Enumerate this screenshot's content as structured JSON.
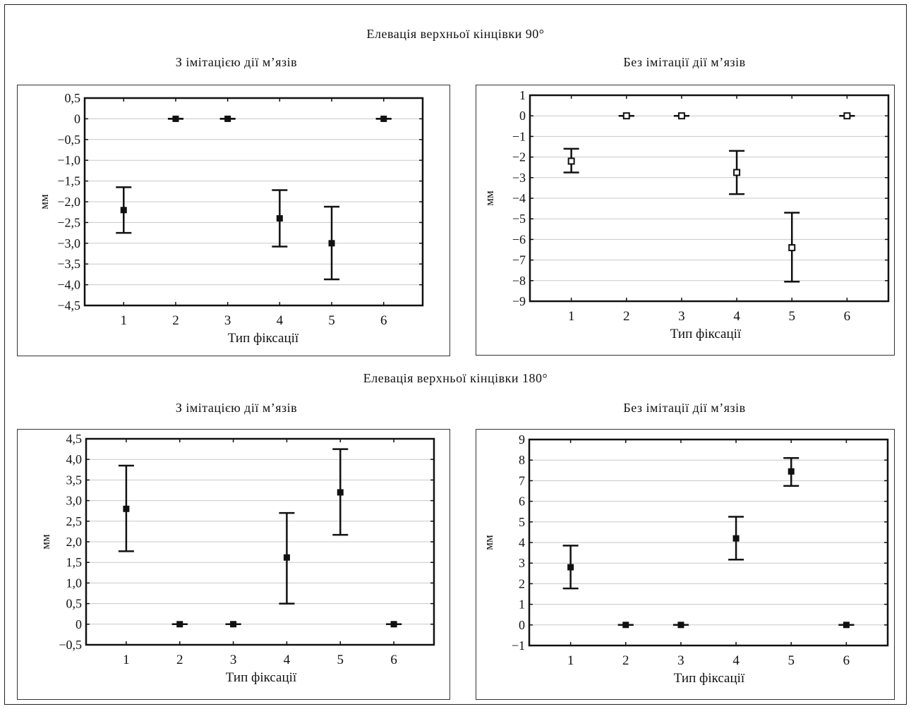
{
  "sections": [
    {
      "title": "Елевація верхньої кінцівки 90°"
    },
    {
      "title": "Елевація верхньої кінцівки 180°"
    }
  ],
  "chart_data": [
    {
      "type": "scatter",
      "title": "З імітацією дії м’язів",
      "xlabel": "Тип фіксації",
      "ylabel": "мм",
      "categories": [
        "1",
        "2",
        "3",
        "4",
        "5",
        "6"
      ],
      "yticks": [
        "0,5",
        "0",
        "−0,5",
        "−1,0",
        "−1,5",
        "−2,0",
        "−2,5",
        "−3,0",
        "−3,5",
        "−4,0",
        "−4,5"
      ],
      "ylim": [
        -4.5,
        0.5
      ],
      "grid": true,
      "marker": "filled",
      "points": [
        {
          "x": "1",
          "y": -2.2,
          "low": -2.75,
          "high": -1.65
        },
        {
          "x": "2",
          "y": 0,
          "low": 0,
          "high": 0
        },
        {
          "x": "3",
          "y": 0,
          "low": 0,
          "high": 0
        },
        {
          "x": "4",
          "y": -2.4,
          "low": -3.08,
          "high": -1.72
        },
        {
          "x": "5",
          "y": -3.0,
          "low": -3.87,
          "high": -2.12
        },
        {
          "x": "6",
          "y": 0,
          "low": 0,
          "high": 0
        }
      ]
    },
    {
      "type": "scatter",
      "title": "Без імітації дії м’язів",
      "xlabel": "Тип фіксації",
      "ylabel": "мм",
      "categories": [
        "1",
        "2",
        "3",
        "4",
        "5",
        "6"
      ],
      "yticks": [
        "1",
        "0",
        "−1",
        "−2",
        "−3",
        "−4",
        "−5",
        "−6",
        "−7",
        "−8",
        "−9"
      ],
      "ylim": [
        -9,
        1
      ],
      "grid": true,
      "marker": "hollow",
      "points": [
        {
          "x": "1",
          "y": -2.2,
          "low": -2.75,
          "high": -1.6
        },
        {
          "x": "2",
          "y": 0,
          "low": 0,
          "high": 0
        },
        {
          "x": "3",
          "y": 0,
          "low": 0,
          "high": 0
        },
        {
          "x": "4",
          "y": -2.75,
          "low": -3.8,
          "high": -1.7
        },
        {
          "x": "5",
          "y": -6.4,
          "low": -8.05,
          "high": -4.7
        },
        {
          "x": "6",
          "y": 0,
          "low": 0,
          "high": 0
        }
      ]
    },
    {
      "type": "scatter",
      "title": "З імітацією дії м’язів",
      "xlabel": "Тип фіксації",
      "ylabel": "мм",
      "categories": [
        "1",
        "2",
        "3",
        "4",
        "5",
        "6"
      ],
      "yticks": [
        "4,5",
        "4,0",
        "3,5",
        "3,0",
        "2,5",
        "2,0",
        "1,5",
        "1,0",
        "0,5",
        "0",
        "−0,5"
      ],
      "ylim": [
        -0.5,
        4.5
      ],
      "grid": true,
      "marker": "filled",
      "points": [
        {
          "x": "1",
          "y": 2.8,
          "low": 1.77,
          "high": 3.85
        },
        {
          "x": "2",
          "y": 0,
          "low": 0,
          "high": 0
        },
        {
          "x": "3",
          "y": 0,
          "low": 0,
          "high": 0
        },
        {
          "x": "4",
          "y": 1.62,
          "low": 0.5,
          "high": 2.7
        },
        {
          "x": "5",
          "y": 3.2,
          "low": 2.17,
          "high": 4.25
        },
        {
          "x": "6",
          "y": 0,
          "low": 0,
          "high": 0
        }
      ]
    },
    {
      "type": "scatter",
      "title": "Без імітації дії м’язів",
      "xlabel": "Тип фіксації",
      "ylabel": "мм",
      "categories": [
        "1",
        "2",
        "3",
        "4",
        "5",
        "6"
      ],
      "yticks": [
        "9",
        "8",
        "7",
        "6",
        "5",
        "4",
        "3",
        "2",
        "1",
        "0",
        "−1"
      ],
      "ylim": [
        -1,
        9
      ],
      "grid": true,
      "marker": "filled",
      "points": [
        {
          "x": "1",
          "y": 2.8,
          "low": 1.77,
          "high": 3.85
        },
        {
          "x": "2",
          "y": 0,
          "low": 0,
          "high": 0
        },
        {
          "x": "3",
          "y": 0,
          "low": 0,
          "high": 0
        },
        {
          "x": "4",
          "y": 4.2,
          "low": 3.17,
          "high": 5.25
        },
        {
          "x": "5",
          "y": 7.45,
          "low": 6.75,
          "high": 8.1
        },
        {
          "x": "6",
          "y": 0,
          "low": 0,
          "high": 0
        }
      ]
    }
  ]
}
